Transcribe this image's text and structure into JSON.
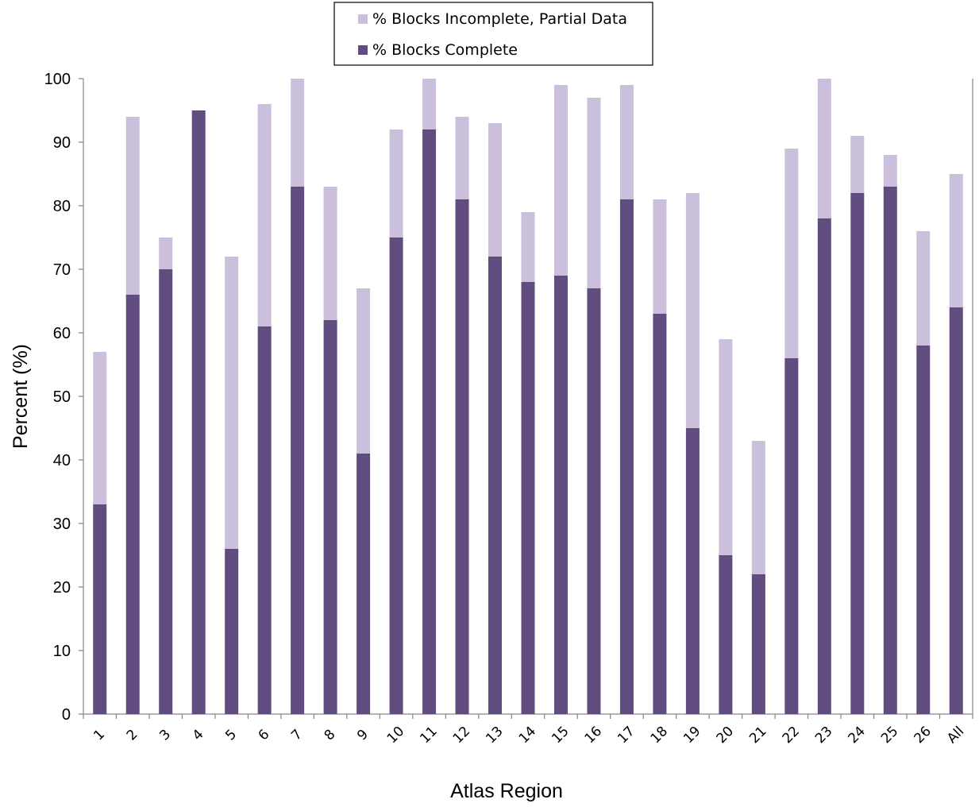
{
  "colors": {
    "complete": "#604c7e",
    "incomplete": "#cbc0db",
    "axis": "#868686",
    "legend_border": "#000000"
  },
  "legend": [
    {
      "key": "incomplete",
      "label": "% Blocks Incomplete, Partial Data"
    },
    {
      "key": "complete",
      "label": "% Blocks Complete"
    }
  ],
  "chart_data": {
    "type": "bar",
    "stacked": true,
    "xlabel": "Atlas Region",
    "ylabel": "Percent (%)",
    "ylim": [
      0,
      100
    ],
    "yticks": [
      0,
      10,
      20,
      30,
      40,
      50,
      60,
      70,
      80,
      90,
      100
    ],
    "grid": false,
    "legend_position": "top-center",
    "categories": [
      "1",
      "2",
      "3",
      "4",
      "5",
      "6",
      "7",
      "8",
      "9",
      "10",
      "11",
      "12",
      "13",
      "14",
      "15",
      "16",
      "17",
      "18",
      "19",
      "20",
      "21",
      "22",
      "23",
      "24",
      "25",
      "26",
      "All"
    ],
    "series": [
      {
        "name": "% Blocks Complete",
        "values": [
          33,
          66,
          70,
          95,
          26,
          61,
          83,
          62,
          41,
          75,
          92,
          81,
          72,
          68,
          69,
          67,
          81,
          63,
          45,
          25,
          22,
          56,
          78,
          82,
          83,
          58,
          64
        ]
      },
      {
        "name": "% Blocks Incomplete, Partial Data",
        "values": [
          24,
          28,
          5,
          0,
          46,
          35,
          17,
          21,
          26,
          17,
          8,
          13,
          21,
          11,
          30,
          30,
          18,
          18,
          37,
          34,
          21,
          33,
          22,
          9,
          5,
          18,
          21
        ]
      }
    ]
  }
}
